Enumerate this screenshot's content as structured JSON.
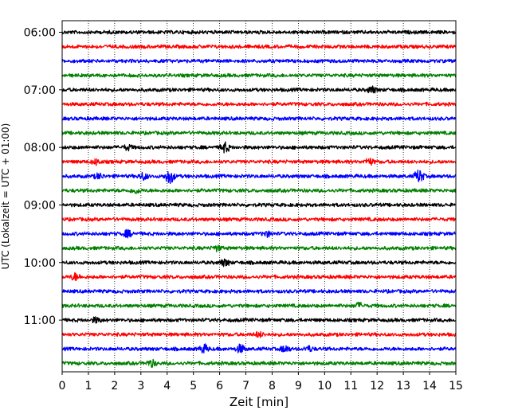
{
  "chart_data": {
    "type": "line",
    "title": "",
    "xlabel": "Zeit  [min]",
    "ylabel": "UTC (Lokalzeit = UTC + 01:00)",
    "xlim": [
      0,
      15
    ],
    "x_ticks": [
      "0",
      "1",
      "2",
      "3",
      "4",
      "5",
      "6",
      "7",
      "8",
      "9",
      "10",
      "11",
      "12",
      "13",
      "14",
      "15"
    ],
    "y_ticks": [
      "06:00",
      "07:00",
      "08:00",
      "09:00",
      "10:00",
      "11:00"
    ],
    "grid": "vertical dotted at each minute",
    "trace_interval_minutes": 15,
    "series": [
      {
        "start": "06:00",
        "color": "#000000"
      },
      {
        "start": "06:15",
        "color": "#ff0000"
      },
      {
        "start": "06:30",
        "color": "#0000ff"
      },
      {
        "start": "06:45",
        "color": "#008000"
      },
      {
        "start": "07:00",
        "color": "#000000"
      },
      {
        "start": "07:15",
        "color": "#ff0000"
      },
      {
        "start": "07:30",
        "color": "#0000ff"
      },
      {
        "start": "07:45",
        "color": "#008000"
      },
      {
        "start": "08:00",
        "color": "#000000"
      },
      {
        "start": "08:15",
        "color": "#ff0000"
      },
      {
        "start": "08:30",
        "color": "#0000ff"
      },
      {
        "start": "08:45",
        "color": "#008000"
      },
      {
        "start": "09:00",
        "color": "#000000"
      },
      {
        "start": "09:15",
        "color": "#ff0000"
      },
      {
        "start": "09:30",
        "color": "#0000ff"
      },
      {
        "start": "09:45",
        "color": "#008000"
      },
      {
        "start": "10:00",
        "color": "#000000"
      },
      {
        "start": "10:15",
        "color": "#ff0000"
      },
      {
        "start": "10:30",
        "color": "#0000ff"
      },
      {
        "start": "10:45",
        "color": "#008000"
      },
      {
        "start": "11:00",
        "color": "#000000"
      },
      {
        "start": "11:15",
        "color": "#ff0000"
      },
      {
        "start": "11:30",
        "color": "#0000ff"
      },
      {
        "start": "11:45",
        "color": "#008000"
      }
    ],
    "events": [
      {
        "trace": 4,
        "x": 11.8,
        "amp": 4
      },
      {
        "trace": 8,
        "x": 6.2,
        "amp": 6
      },
      {
        "trace": 8,
        "x": 2.5,
        "amp": 3
      },
      {
        "trace": 9,
        "x": 1.3,
        "amp": 3
      },
      {
        "trace": 9,
        "x": 11.7,
        "amp": 4
      },
      {
        "trace": 10,
        "x": 4.1,
        "amp": 9
      },
      {
        "trace": 10,
        "x": 13.6,
        "amp": 8
      },
      {
        "trace": 10,
        "x": 3.1,
        "amp": 4
      },
      {
        "trace": 10,
        "x": 1.4,
        "amp": 3
      },
      {
        "trace": 11,
        "x": 2.8,
        "amp": 3
      },
      {
        "trace": 14,
        "x": 2.5,
        "amp": 4
      },
      {
        "trace": 14,
        "x": 7.8,
        "amp": 3
      },
      {
        "trace": 15,
        "x": 5.9,
        "amp": 3
      },
      {
        "trace": 16,
        "x": 6.2,
        "amp": 4
      },
      {
        "trace": 17,
        "x": 0.5,
        "amp": 4
      },
      {
        "trace": 19,
        "x": 11.3,
        "amp": 3
      },
      {
        "trace": 20,
        "x": 1.3,
        "amp": 3
      },
      {
        "trace": 21,
        "x": 7.5,
        "amp": 3
      },
      {
        "trace": 22,
        "x": 5.4,
        "amp": 5
      },
      {
        "trace": 22,
        "x": 6.8,
        "amp": 5
      },
      {
        "trace": 22,
        "x": 8.5,
        "amp": 4
      },
      {
        "trace": 22,
        "x": 9.4,
        "amp": 3
      },
      {
        "trace": 23,
        "x": 3.4,
        "amp": 4
      }
    ]
  }
}
